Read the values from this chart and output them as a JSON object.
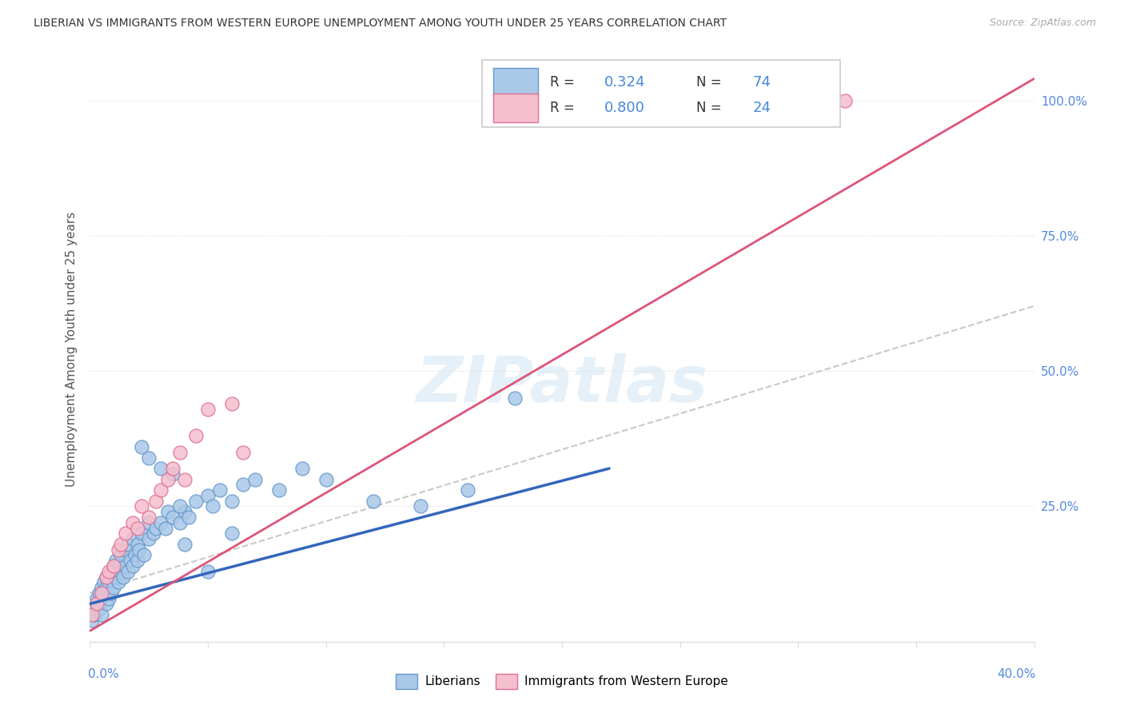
{
  "title": "LIBERIAN VS IMMIGRANTS FROM WESTERN EUROPE UNEMPLOYMENT AMONG YOUTH UNDER 25 YEARS CORRELATION CHART",
  "source": "Source: ZipAtlas.com",
  "ylabel": "Unemployment Among Youth under 25 years",
  "xmin": 0.0,
  "xmax": 0.4,
  "ymin": 0.0,
  "ymax": 1.08,
  "liberian_color": "#aac8e8",
  "liberian_edge_color": "#6699cc",
  "immigrant_color": "#f5bfce",
  "immigrant_edge_color": "#e07090",
  "line1_color": "#3366bb",
  "line2_color": "#dd5577",
  "ref_line_color": "#bbbbbb",
  "background_color": "#ffffff",
  "watermark_color": "#d0e4f4",
  "grid_color": "#dddddd",
  "right_axis_color": "#5588dd",
  "legend_text_color": "#333333",
  "legend_value_color": "#4488dd",
  "title_color": "#333333",
  "source_color": "#aaaaaa",
  "ylabel_color": "#555555",
  "xlabel_color": "#5588dd",
  "liberian_x": [
    0.001,
    0.002,
    0.002,
    0.003,
    0.003,
    0.004,
    0.004,
    0.005,
    0.005,
    0.005,
    0.006,
    0.006,
    0.007,
    0.007,
    0.007,
    0.008,
    0.008,
    0.009,
    0.009,
    0.01,
    0.01,
    0.011,
    0.011,
    0.012,
    0.012,
    0.013,
    0.013,
    0.014,
    0.015,
    0.015,
    0.016,
    0.016,
    0.017,
    0.018,
    0.018,
    0.019,
    0.02,
    0.02,
    0.021,
    0.022,
    0.023,
    0.025,
    0.025,
    0.027,
    0.028,
    0.03,
    0.032,
    0.033,
    0.035,
    0.038,
    0.04,
    0.042,
    0.045,
    0.05,
    0.052,
    0.055,
    0.06,
    0.065,
    0.07,
    0.08,
    0.09,
    0.1,
    0.12,
    0.14,
    0.16,
    0.18,
    0.05,
    0.06,
    0.022,
    0.025,
    0.03,
    0.035,
    0.038,
    0.04
  ],
  "liberian_y": [
    0.04,
    0.05,
    0.06,
    0.07,
    0.08,
    0.06,
    0.09,
    0.08,
    0.1,
    0.05,
    0.09,
    0.11,
    0.07,
    0.1,
    0.12,
    0.08,
    0.11,
    0.09,
    0.13,
    0.1,
    0.14,
    0.12,
    0.15,
    0.11,
    0.14,
    0.13,
    0.16,
    0.12,
    0.14,
    0.17,
    0.13,
    0.18,
    0.15,
    0.14,
    0.19,
    0.16,
    0.15,
    0.18,
    0.17,
    0.2,
    0.16,
    0.19,
    0.22,
    0.2,
    0.21,
    0.22,
    0.21,
    0.24,
    0.23,
    0.22,
    0.24,
    0.23,
    0.26,
    0.27,
    0.25,
    0.28,
    0.26,
    0.29,
    0.3,
    0.28,
    0.32,
    0.3,
    0.26,
    0.25,
    0.28,
    0.45,
    0.13,
    0.2,
    0.36,
    0.34,
    0.32,
    0.31,
    0.25,
    0.18
  ],
  "immigrant_x": [
    0.001,
    0.003,
    0.005,
    0.007,
    0.008,
    0.01,
    0.012,
    0.013,
    0.015,
    0.018,
    0.02,
    0.022,
    0.025,
    0.028,
    0.03,
    0.033,
    0.035,
    0.038,
    0.04,
    0.045,
    0.05,
    0.06,
    0.065,
    0.32
  ],
  "immigrant_y": [
    0.05,
    0.07,
    0.09,
    0.12,
    0.13,
    0.14,
    0.17,
    0.18,
    0.2,
    0.22,
    0.21,
    0.25,
    0.23,
    0.26,
    0.28,
    0.3,
    0.32,
    0.35,
    0.3,
    0.38,
    0.43,
    0.44,
    0.35,
    1.0
  ],
  "blue_line_x": [
    0.0,
    0.22
  ],
  "blue_line_y": [
    0.07,
    0.32
  ],
  "pink_line_x": [
    0.0,
    0.4
  ],
  "pink_line_y": [
    0.02,
    1.04
  ],
  "ref_line_x": [
    0.0,
    0.4
  ],
  "ref_line_y": [
    0.09,
    0.62
  ]
}
